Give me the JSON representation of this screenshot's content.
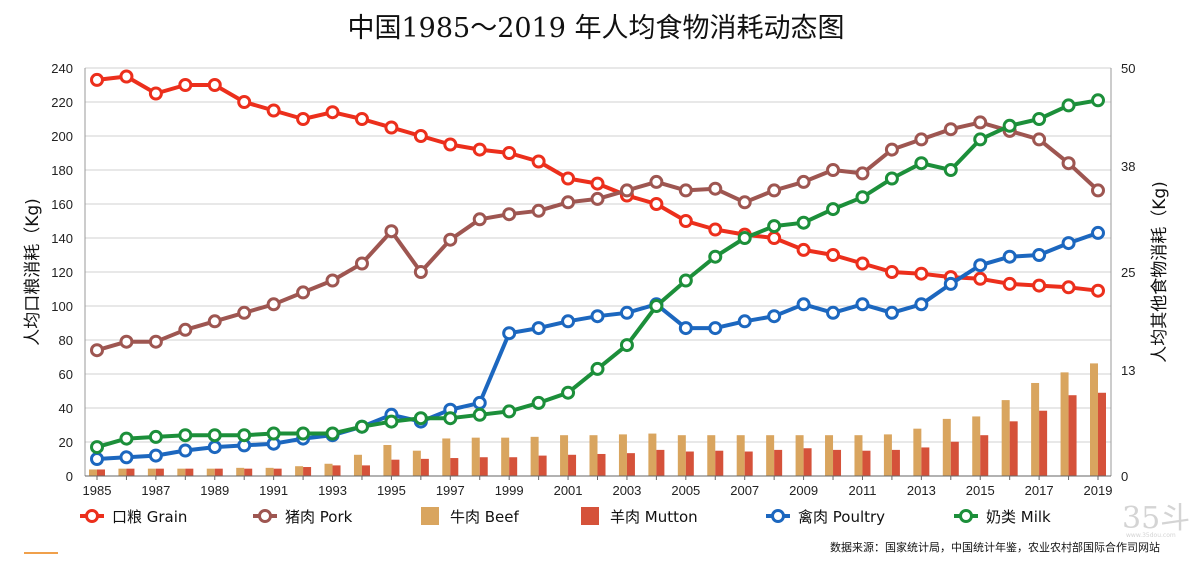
{
  "chart_data": {
    "type": "line",
    "title": "中国1985～2019 年人均食物消耗动态图",
    "ylabel_left": "人均口粮消耗（Kg)",
    "ylabel_right": "人均其他食物消耗（Kg)",
    "left_axis": {
      "range": [
        0,
        240
      ],
      "ticks": [
        "0",
        "20",
        "40",
        "60",
        "80",
        "100",
        "120",
        "140",
        "160",
        "180",
        "200",
        "220",
        "240"
      ]
    },
    "right_axis": {
      "range": [
        0,
        50
      ],
      "ticks": [
        "0",
        "13",
        "25",
        "38",
        "50"
      ]
    },
    "x_ticks": [
      "1985",
      "1987",
      "1989",
      "1991",
      "1993",
      "1995",
      "1997",
      "1999",
      "2001",
      "2003",
      "2005",
      "2007",
      "2009",
      "2011",
      "2013",
      "2015",
      "2017",
      "2019"
    ],
    "x": [
      1985,
      1986,
      1987,
      1988,
      1989,
      1990,
      1991,
      1992,
      1993,
      1994,
      1995,
      1996,
      1997,
      1998,
      1999,
      2000,
      2001,
      2002,
      2003,
      2004,
      2005,
      2006,
      2007,
      2008,
      2009,
      2010,
      2011,
      2012,
      2013,
      2014,
      2015,
      2016,
      2017,
      2018,
      2019
    ],
    "grid": "horizontal",
    "legend_position": "bottom",
    "series": [
      {
        "name": "口粮 Grain",
        "kind": "line",
        "axis": "left",
        "color": "#ec2f1c",
        "values": [
          233,
          235,
          225,
          230,
          230,
          220,
          215,
          210,
          214,
          210,
          205,
          200,
          195,
          192,
          190,
          185,
          175,
          172,
          165,
          160,
          150,
          145,
          142,
          140,
          133,
          130,
          125,
          120,
          119,
          117,
          116,
          113,
          112,
          111,
          109
        ]
      },
      {
        "name": "猪肉 Pork",
        "kind": "line",
        "axis": "left",
        "color": "#9e5651",
        "values": [
          74,
          79,
          79,
          86,
          91,
          96,
          101,
          108,
          115,
          125,
          144,
          120,
          139,
          151,
          154,
          156,
          161,
          163,
          168,
          173,
          168,
          169,
          161,
          168,
          173,
          180,
          178,
          192,
          198,
          204,
          208,
          203,
          198,
          184,
          168
        ]
      },
      {
        "name": "牛肉 Beef",
        "kind": "bar",
        "axis": "right",
        "color": "#d9a55f",
        "values": [
          0.8,
          0.9,
          0.9,
          0.9,
          0.9,
          1.0,
          1.0,
          1.2,
          1.5,
          2.6,
          3.8,
          3.1,
          4.6,
          4.7,
          4.7,
          4.8,
          5.0,
          5.0,
          5.1,
          5.2,
          5.0,
          5.0,
          5.0,
          5.0,
          5.0,
          5.0,
          5.0,
          5.1,
          5.8,
          7.0,
          7.3,
          9.3,
          11.4,
          12.7,
          13.8
        ]
      },
      {
        "name": "羊肉 Mutton",
        "kind": "bar",
        "axis": "right",
        "color": "#d5523a",
        "values": [
          0.8,
          0.9,
          0.9,
          0.9,
          0.9,
          0.9,
          0.9,
          1.1,
          1.3,
          1.3,
          2.0,
          2.1,
          2.2,
          2.3,
          2.3,
          2.5,
          2.6,
          2.7,
          2.8,
          3.2,
          3.0,
          3.1,
          3.0,
          3.2,
          3.4,
          3.2,
          3.1,
          3.2,
          3.5,
          4.2,
          5.0,
          6.7,
          8.0,
          9.9,
          10.2
        ]
      },
      {
        "name": "禽肉 Poultry",
        "kind": "line",
        "axis": "left",
        "color": "#1c67bf",
        "values": [
          10,
          11,
          12,
          15,
          17,
          18,
          19,
          22,
          24,
          29,
          36,
          32,
          39,
          43,
          84,
          87,
          91,
          94,
          96,
          101,
          87,
          87,
          91,
          94,
          101,
          96,
          101,
          96,
          101,
          113,
          124,
          129,
          130,
          137,
          143
        ]
      },
      {
        "name": "奶类 Milk",
        "kind": "line",
        "axis": "left",
        "color": "#1c8f3a",
        "values": [
          17,
          22,
          23,
          24,
          24,
          24,
          25,
          25,
          25,
          29,
          32,
          34,
          34,
          36,
          38,
          43,
          49,
          63,
          77,
          100,
          115,
          129,
          140,
          147,
          149,
          157,
          164,
          175,
          184,
          180,
          198,
          206,
          210,
          218,
          221
        ]
      }
    ]
  },
  "source_text": "数据来源：国家统计局，中国统计年鉴，农业农村部国际合作司网站",
  "watermark": {
    "logo": "35斗",
    "site": "www.35dou.com"
  }
}
